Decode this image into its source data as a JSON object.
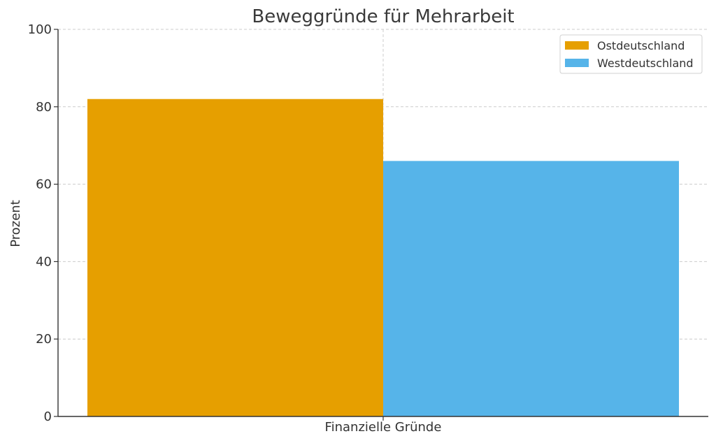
{
  "chart_data": {
    "type": "bar",
    "title": "Beweggründe für Mehrarbeit",
    "xlabel": "",
    "ylabel": "Prozent",
    "categories": [
      "Finanzielle Gründe"
    ],
    "series": [
      {
        "name": "Ostdeutschland",
        "values": [
          82
        ],
        "color": "#E69F00"
      },
      {
        "name": "Westdeutschland",
        "values": [
          66
        ],
        "color": "#56B4E9"
      }
    ],
    "ylim": [
      0,
      100
    ],
    "yticks": [
      "0",
      "20",
      "40",
      "60",
      "80",
      "100"
    ],
    "grid": true,
    "legend_position": "top-right"
  }
}
